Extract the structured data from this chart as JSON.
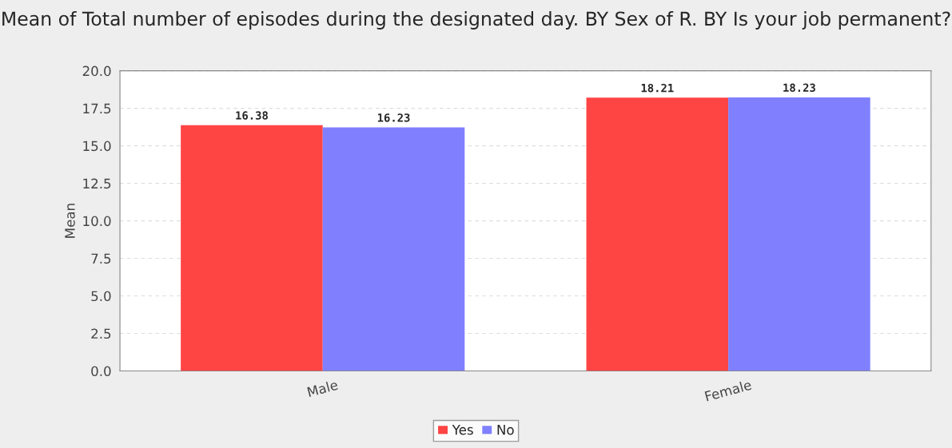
{
  "chart_data": {
    "type": "bar",
    "title": "Mean of Total number of episodes during the designated day. BY Sex of R. BY Is your job permanent?",
    "ylabel": "Mean",
    "categories": [
      "Male",
      "Female"
    ],
    "series": [
      {
        "name": "Yes",
        "color": "#ff4444",
        "values": [
          16.38,
          18.21
        ]
      },
      {
        "name": "No",
        "color": "#8080ff",
        "values": [
          16.23,
          18.23
        ]
      }
    ],
    "ylim": [
      0,
      20
    ],
    "yticks": [
      {
        "value": 0,
        "label": "0.0"
      },
      {
        "value": 2.5,
        "label": "2.5"
      },
      {
        "value": 5,
        "label": "5.0"
      },
      {
        "value": 7.5,
        "label": "7.5"
      },
      {
        "value": 10,
        "label": "10.0"
      },
      {
        "value": 12.5,
        "label": "12.5"
      },
      {
        "value": 15,
        "label": "15.0"
      },
      {
        "value": 17.5,
        "label": "17.5"
      },
      {
        "value": 20,
        "label": "20.0"
      }
    ],
    "grid": "y",
    "legend": "bottom",
    "data_labels": true
  }
}
